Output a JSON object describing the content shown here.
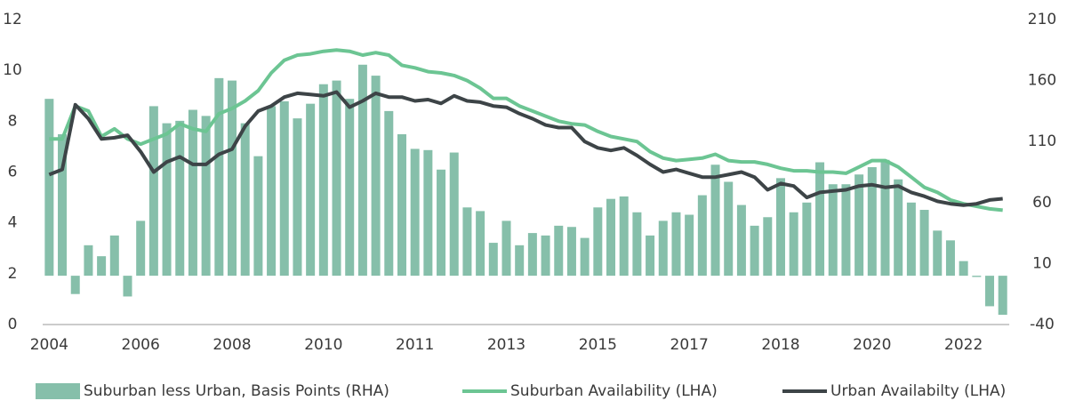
{
  "chart_data": {
    "type": "bar_line",
    "categories": [
      "2004",
      null,
      null,
      null,
      null,
      null,
      null,
      "2006",
      null,
      null,
      null,
      null,
      null,
      null,
      "2008",
      null,
      null,
      null,
      null,
      null,
      null,
      "2010",
      null,
      null,
      null,
      null,
      null,
      null,
      "2011",
      null,
      null,
      null,
      null,
      null,
      null,
      "2013",
      null,
      null,
      null,
      null,
      null,
      null,
      "2015",
      null,
      null,
      null,
      null,
      null,
      null,
      "2017",
      null,
      null,
      null,
      null,
      null,
      null,
      "2018",
      null,
      null,
      null,
      null,
      null,
      null,
      "2020",
      null,
      null,
      null,
      null,
      null,
      null,
      "2022",
      null,
      null,
      null
    ],
    "series": [
      {
        "name": "Suburban less Urban, Basis Points (RHA)",
        "type": "bar",
        "axis": "y2",
        "color": "#86bfaa",
        "values": [
          145,
          116,
          -15,
          25,
          16,
          33,
          -17,
          45,
          139,
          125,
          127,
          136,
          131,
          162,
          160,
          125,
          98,
          139,
          143,
          129,
          141,
          157,
          160,
          145,
          173,
          164,
          135,
          116,
          104,
          103,
          87,
          101,
          56,
          53,
          27,
          45,
          25,
          35,
          33,
          41,
          40,
          31,
          56,
          63,
          65,
          52,
          33,
          45,
          52,
          50,
          66,
          91,
          77,
          58,
          41,
          48,
          80,
          52,
          60,
          93,
          75,
          75,
          83,
          89,
          95,
          79,
          60,
          54,
          37,
          29,
          12,
          -1,
          -25,
          -32
        ]
      },
      {
        "name": "Suburban Availability (LHA)",
        "type": "line",
        "axis": "y",
        "color": "#6cc593",
        "values": [
          7.3,
          7.3,
          8.6,
          8.4,
          7.4,
          7.7,
          7.3,
          7.1,
          7.3,
          7.5,
          7.9,
          7.7,
          7.6,
          8.3,
          8.5,
          8.8,
          9.2,
          9.9,
          10.4,
          10.6,
          10.65,
          10.75,
          10.8,
          10.75,
          10.6,
          10.7,
          10.6,
          10.2,
          10.1,
          9.95,
          9.9,
          9.8,
          9.6,
          9.3,
          8.9,
          8.9,
          8.6,
          8.4,
          8.2,
          8.0,
          7.9,
          7.85,
          7.6,
          7.4,
          7.3,
          7.2,
          6.8,
          6.55,
          6.45,
          6.5,
          6.55,
          6.7,
          6.45,
          6.4,
          6.4,
          6.3,
          6.15,
          6.05,
          6.05,
          6.0,
          6.0,
          5.95,
          6.2,
          6.45,
          6.45,
          6.2,
          5.8,
          5.4,
          5.2,
          4.9,
          4.75,
          4.65,
          4.55,
          4.5
        ]
      },
      {
        "name": "Urban Availabilty (LHA)",
        "type": "line",
        "axis": "y",
        "color": "#3d4447",
        "values": [
          5.9,
          6.1,
          8.65,
          8.1,
          7.3,
          7.35,
          7.45,
          6.8,
          6.0,
          6.4,
          6.6,
          6.3,
          6.3,
          6.7,
          6.9,
          7.8,
          8.4,
          8.6,
          8.95,
          9.1,
          9.05,
          9.0,
          9.15,
          8.55,
          8.8,
          9.1,
          8.95,
          8.95,
          8.8,
          8.85,
          8.7,
          9.0,
          8.8,
          8.75,
          8.6,
          8.55,
          8.3,
          8.1,
          7.85,
          7.75,
          7.75,
          7.2,
          6.95,
          6.85,
          6.95,
          6.65,
          6.3,
          6.0,
          6.1,
          5.95,
          5.8,
          5.8,
          5.9,
          6.0,
          5.8,
          5.3,
          5.55,
          5.45,
          5.0,
          5.2,
          5.25,
          5.3,
          5.45,
          5.5,
          5.4,
          5.45,
          5.2,
          5.05,
          4.85,
          4.75,
          4.7,
          4.75,
          4.9,
          4.95
        ]
      }
    ],
    "ylim": [
      0,
      12
    ],
    "yticks": [
      0,
      2,
      4,
      6,
      8,
      10,
      12
    ],
    "y2lim": [
      -40,
      210
    ],
    "y2ticks": [
      -40,
      10,
      60,
      110,
      160,
      210
    ],
    "legend": "bottom"
  }
}
